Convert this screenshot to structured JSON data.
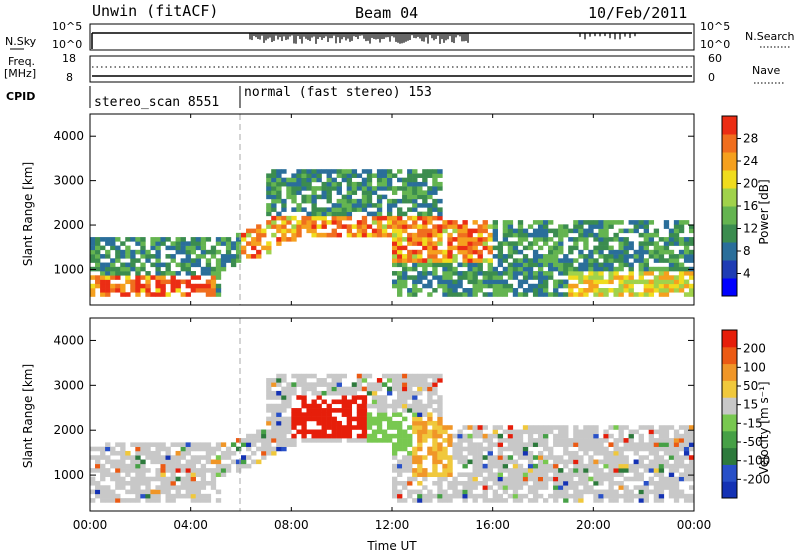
{
  "header": {
    "station": "Unwin (fitACF)",
    "beam": "Beam 04",
    "date": "10/Feb/2011"
  },
  "top_panels": {
    "nsky_label": "N.Sky",
    "nsky_ticks": [
      "10^5",
      "10^0"
    ],
    "nsearch_label": "N.Search",
    "nsearch_ticks": [
      "10^5",
      "10^0"
    ],
    "freq_label_line1": "Freq.",
    "freq_label_line2": "[MHz]",
    "freq_ticks": [
      "18",
      "8"
    ],
    "nave_label": "Nave",
    "nave_ticks": [
      "60",
      "0"
    ],
    "cpid_label": "CPID",
    "cpid_segments": [
      {
        "label": "stereo_scan 8551",
        "start_hour": 0,
        "end_hour": 6
      },
      {
        "label": "normal (fast stereo) 153",
        "start_hour": 6,
        "end_hour": 24
      }
    ]
  },
  "chart_data": [
    {
      "type": "heatmap",
      "name": "power",
      "ylabel": "Slant Range [km]",
      "y_ticks": [
        "4000",
        "3000",
        "2000",
        "1000"
      ],
      "y_tick_values": [
        4000,
        3000,
        2000,
        1000
      ],
      "ylim": [
        200,
        4500
      ],
      "xlim": [
        0,
        24
      ],
      "colorbar_label": "Power [dB]",
      "colorbar_ticks": [
        "28",
        "24",
        "20",
        "16",
        "12",
        "8",
        "4"
      ],
      "colorbar_colors": [
        "#0000ff",
        "#1e3cb4",
        "#2a6e9a",
        "#3b8c4f",
        "#64b450",
        "#a0d24b",
        "#f0dc1e",
        "#f5a01e",
        "#f06e1e",
        "#eb2d14"
      ]
    },
    {
      "type": "heatmap",
      "name": "velocity",
      "ylabel": "Slant Range [km]",
      "y_ticks": [
        "4000",
        "3000",
        "2000",
        "1000"
      ],
      "y_tick_values": [
        4000,
        3000,
        2000,
        1000
      ],
      "ylim": [
        200,
        4500
      ],
      "xlim": [
        0,
        24
      ],
      "colorbar_label": "Velocity [m s⁻¹]",
      "colorbar_ticks": [
        "200",
        "100",
        "50",
        "15",
        "-15",
        "-50",
        "-100",
        "-200"
      ],
      "colorbar_colors": [
        "#1432b4",
        "#2850c8",
        "#2d7a3c",
        "#46a046",
        "#78c850",
        "#c8c8c8",
        "#f0c83c",
        "#f09628",
        "#eb5a14",
        "#e61e0a"
      ]
    }
  ],
  "xaxis": {
    "ticks": [
      "00:00",
      "04:00",
      "08:00",
      "12:00",
      "16:00",
      "20:00",
      "00:00"
    ],
    "tick_hours": [
      0,
      4,
      8,
      12,
      16,
      20,
      24
    ],
    "label": "Time UT"
  },
  "colors": {
    "ground_scatter": "#c8c8c8",
    "background": "#ffffff"
  }
}
